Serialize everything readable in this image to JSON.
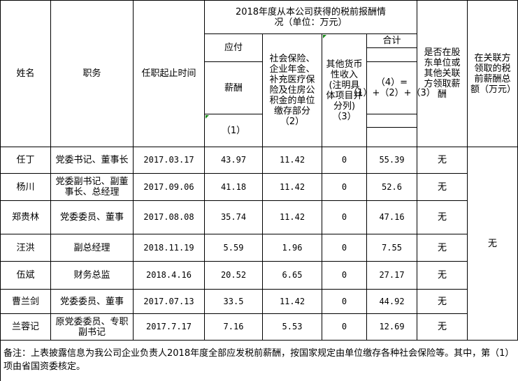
{
  "headers": {
    "name": "姓名",
    "position": "职务",
    "tenure": "任职起止时间",
    "group_title": "2018年度从本公司获得的税前报酬情况（单位：万元）",
    "payable": "应付",
    "salary": "薪酬",
    "col1": "（1）",
    "social": "社会保险、企业年金、补充医疗保险及住房公积金的单位缴存部分（2）",
    "other": "其他货币性收入(注明具体项目并分列)（3）",
    "total": "合计",
    "formula": "（4）=（1）+（2）+（3）",
    "shareholder": "是否在股东单位或其他关联方领取薪酬",
    "related": "在关联方领取的税前薪酬总额（万元）"
  },
  "rows": [
    {
      "name": "任丁",
      "position": "党委书记、董事长",
      "tenure": "2017.03.17",
      "salary": "43.97",
      "social": "11.42",
      "other": "0",
      "total": "55.39",
      "shareholder": "无"
    },
    {
      "name": "杨川",
      "position": "党委副书记、副董事长、总经理",
      "tenure": "2017.09.06",
      "salary": "41.18",
      "social": "11.42",
      "other": "0",
      "total": "52.6",
      "shareholder": "无"
    },
    {
      "name": "郑贵林",
      "position": "党委委员、董事",
      "tenure": "2017.08.08",
      "salary": "35.74",
      "social": "11.42",
      "other": "0",
      "total": "47.16",
      "shareholder": "无"
    },
    {
      "name": "汪洪",
      "position": "副总经理",
      "tenure": "2018.11.19",
      "salary": "5.59",
      "social": "1.96",
      "other": "0",
      "total": "7.55",
      "shareholder": "无"
    },
    {
      "name": "伍斌",
      "position": "财务总监",
      "tenure": "2018.4.16",
      "salary": "20.52",
      "social": "6.65",
      "other": "0",
      "total": "27.17",
      "shareholder": "无"
    },
    {
      "name": "曹兰剑",
      "position": "党委委员、董事",
      "tenure": "2017.07.13",
      "salary": "33.5",
      "social": "11.42",
      "other": "0",
      "total": "44.92",
      "shareholder": "无"
    },
    {
      "name": "兰蓉记",
      "position": "原党委委员、专职副书记",
      "tenure": "2017.7.17",
      "salary": "7.16",
      "social": "5.53",
      "other": "0",
      "total": "12.69",
      "shareholder": "无"
    }
  ],
  "related_value": "无",
  "note": "备注：上表披露信息为我公司企业负责人2018年度全部应发税前薪酬，按国家规定由单位缴存各种社会保险等。其中，第（1）项由省国资委核定。"
}
